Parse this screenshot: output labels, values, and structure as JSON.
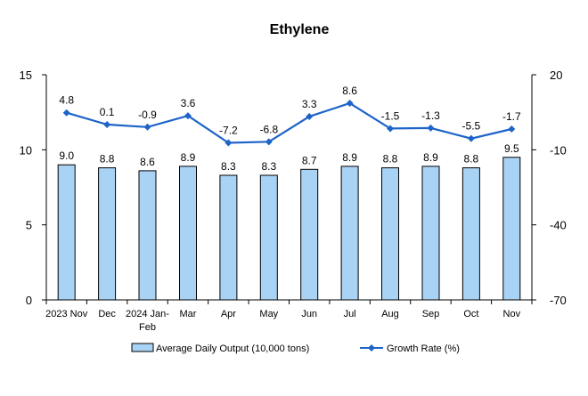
{
  "chart_data": {
    "type": "bar",
    "title": "Ethylene",
    "categories": [
      "2023 Nov",
      "Dec",
      "2024 Jan-Feb",
      "Mar",
      "Apr",
      "May",
      "Jun",
      "Jul",
      "Aug",
      "Sep",
      "Oct",
      "Nov"
    ],
    "series": [
      {
        "name": "Average Daily Output (10,000 tons)",
        "type": "bar",
        "axis": "left",
        "values": [
          9.0,
          8.8,
          8.6,
          8.9,
          8.3,
          8.3,
          8.7,
          8.9,
          8.8,
          8.9,
          8.8,
          9.5
        ],
        "labels": [
          "9.0",
          "8.8",
          "8.6",
          "8.9",
          "8.3",
          "8.3",
          "8.7",
          "8.9",
          "8.8",
          "8.9",
          "8.8",
          "9.5"
        ]
      },
      {
        "name": "Growth Rate (%)",
        "type": "line",
        "axis": "right",
        "values": [
          4.8,
          0.1,
          -0.9,
          3.6,
          -7.2,
          -6.8,
          3.3,
          8.6,
          -1.5,
          -1.3,
          -5.5,
          -1.7
        ],
        "labels": [
          "4.8",
          "0.1",
          "-0.9",
          "3.6",
          "-7.2",
          "-6.8",
          "3.3",
          "8.6",
          "-1.5",
          "-1.3",
          "-5.5",
          "-1.7"
        ]
      }
    ],
    "y_left": {
      "range": [
        0,
        15
      ],
      "ticks": [
        0,
        5,
        10,
        15
      ],
      "tick_labels": [
        "0",
        "5",
        "10",
        "15"
      ]
    },
    "y_right": {
      "range": [
        -70,
        20
      ],
      "ticks": [
        -70,
        -40,
        -10,
        20
      ],
      "tick_labels": [
        "-70",
        "-40",
        "-10",
        "20"
      ]
    },
    "grid": false,
    "legend_position": "bottom",
    "colors": {
      "bar_fill": "#a9d3f5",
      "bar_stroke": "#000000",
      "line": "#1e64c8",
      "axis": "#000000"
    }
  }
}
